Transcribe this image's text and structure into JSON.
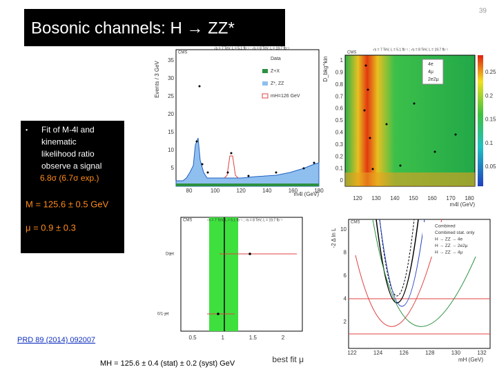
{
  "page_number": "39",
  "title": "Bosonic channels:  H → ZZ*",
  "summary": {
    "bullet_lines": [
      "Fit of M-4l and",
      "kinematic",
      "likelihood ratio",
      "observe a signal"
    ],
    "significance": "6.8σ  (6.7σ exp.)",
    "mass": "M = 125.6 ± 0.5 GeV",
    "mu": "μ  = 0.9 ± 0.3"
  },
  "reference": "PRD 89 (2014) 092007",
  "caption": "MH = 125.6 ± 0.4 (stat) ± 0.2 (syst) GeV",
  "figures": [
    {
      "header": "CMS",
      "lumi": "√s = 7 TeV, L = 5.1 fb⁻¹ ; √s = 8 TeV, L = 19.7 fb⁻¹",
      "ylabel": "Events / 3 GeV",
      "xlabel": "m4l (GeV)",
      "yticks": [
        "5",
        "10",
        "15",
        "20",
        "25",
        "30",
        "35"
      ],
      "xticks": [
        "80",
        "100",
        "120",
        "140",
        "160",
        "180"
      ],
      "legend": [
        "Data",
        "Z+X",
        "Z*, ZZ",
        "mH=126 GeV"
      ]
    },
    {
      "header": "CMS",
      "lumi": "√s = 7 TeV, L = 5.1 fb⁻¹ ; √s = 8 TeV, L = 19.7 fb⁻¹",
      "ylabel": "D_bkg^kin",
      "xlabel": "m4l (GeV)",
      "yticks": [
        "0",
        "0.1",
        "0.2",
        "0.3",
        "0.4",
        "0.5",
        "0.6",
        "0.7",
        "0.8",
        "0.9",
        "1"
      ],
      "xticks": [
        "120",
        "130",
        "140",
        "150",
        "160",
        "170",
        "180"
      ],
      "zticks": [
        "0.05",
        "0.1",
        "0.15",
        "0.2",
        "0.25"
      ],
      "legend": [
        "4e",
        "4μ",
        "2e2μ"
      ]
    },
    {
      "header": "CMS",
      "lumi": "√s = 7 TeV, L = 5.1 fb⁻¹ ; √s = 8 TeV, L = 19.7 fb⁻¹",
      "rows": [
        "Dijet",
        "0/1-jet"
      ],
      "xticks": [
        "0.5",
        "1",
        "1.5",
        "2"
      ],
      "xlabel": "best fit μ"
    },
    {
      "header": "CMS",
      "ylabel": "-2 Δ ln L",
      "xlabel": "mH (GeV)",
      "yticks": [
        "2",
        "4",
        "6",
        "8",
        "10"
      ],
      "xticks": [
        "122",
        "124",
        "126",
        "128",
        "130",
        "132"
      ],
      "legend": [
        "Combined",
        "Combined stat. only",
        "H → ZZ → 4e",
        "H → ZZ → 2e2μ",
        "H → ZZ → 4μ"
      ]
    }
  ]
}
